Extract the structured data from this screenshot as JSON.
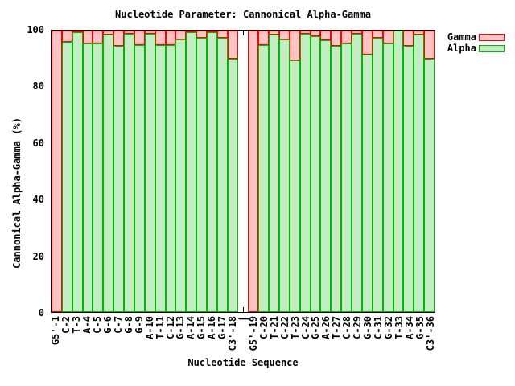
{
  "chart_data": {
    "type": "bar",
    "stacked": true,
    "title": "Nucleotide Parameter: Cannonical Alpha-Gamma",
    "xlabel": "Nucleotide Sequence",
    "ylabel": "Cannonical Alpha-Gamma (%)",
    "ylim": [
      0,
      100
    ],
    "yticks": [
      0,
      20,
      40,
      60,
      80,
      100
    ],
    "grid": false,
    "legend_position": "outside-top-right",
    "categories": [
      "G5'-1",
      "C-2",
      "T-3",
      "A-4",
      "C-5",
      "G-6",
      "C-7",
      "G-8",
      "G-9",
      "A-10",
      "T-11",
      "C-12",
      "G-13",
      "A-14",
      "G-15",
      "A-16",
      "G-17",
      "C3'-18",
      "|",
      "G5'-19",
      "C-20",
      "T-21",
      "C-22",
      "T-23",
      "C-24",
      "G-25",
      "A-26",
      "T-27",
      "C-28",
      "C-29",
      "G-30",
      "C-31",
      "G-32",
      "T-33",
      "A-34",
      "G-35",
      "C3'-36"
    ],
    "series": [
      {
        "name": "Gamma",
        "fill_color": "#ffc3c3",
        "border_color": "#ff0000",
        "values": [
          100,
          4,
          0.5,
          4.5,
          4.5,
          1.5,
          5.5,
          1,
          5,
          1,
          5,
          5,
          3,
          0.5,
          2.5,
          0.5,
          2.5,
          10,
          null,
          100,
          5,
          1.5,
          3,
          10.5,
          1,
          2,
          3.5,
          5.5,
          4.5,
          1,
          8.5,
          2.5,
          4.5,
          0,
          5.5,
          1.5,
          10
        ]
      },
      {
        "name": "Alpha",
        "fill_color": "#c3eec3",
        "border_color": "#00b800",
        "values": [
          0,
          96,
          99.5,
          95.5,
          95.5,
          98.5,
          94.5,
          99,
          95,
          99,
          95,
          95,
          97,
          99.5,
          97.5,
          99.5,
          97.5,
          90,
          null,
          0,
          95,
          98.5,
          97,
          89.5,
          99,
          98,
          96.5,
          94.5,
          95.5,
          99,
          91.5,
          97.5,
          95.5,
          100,
          94.5,
          98.5,
          90
        ]
      }
    ]
  }
}
